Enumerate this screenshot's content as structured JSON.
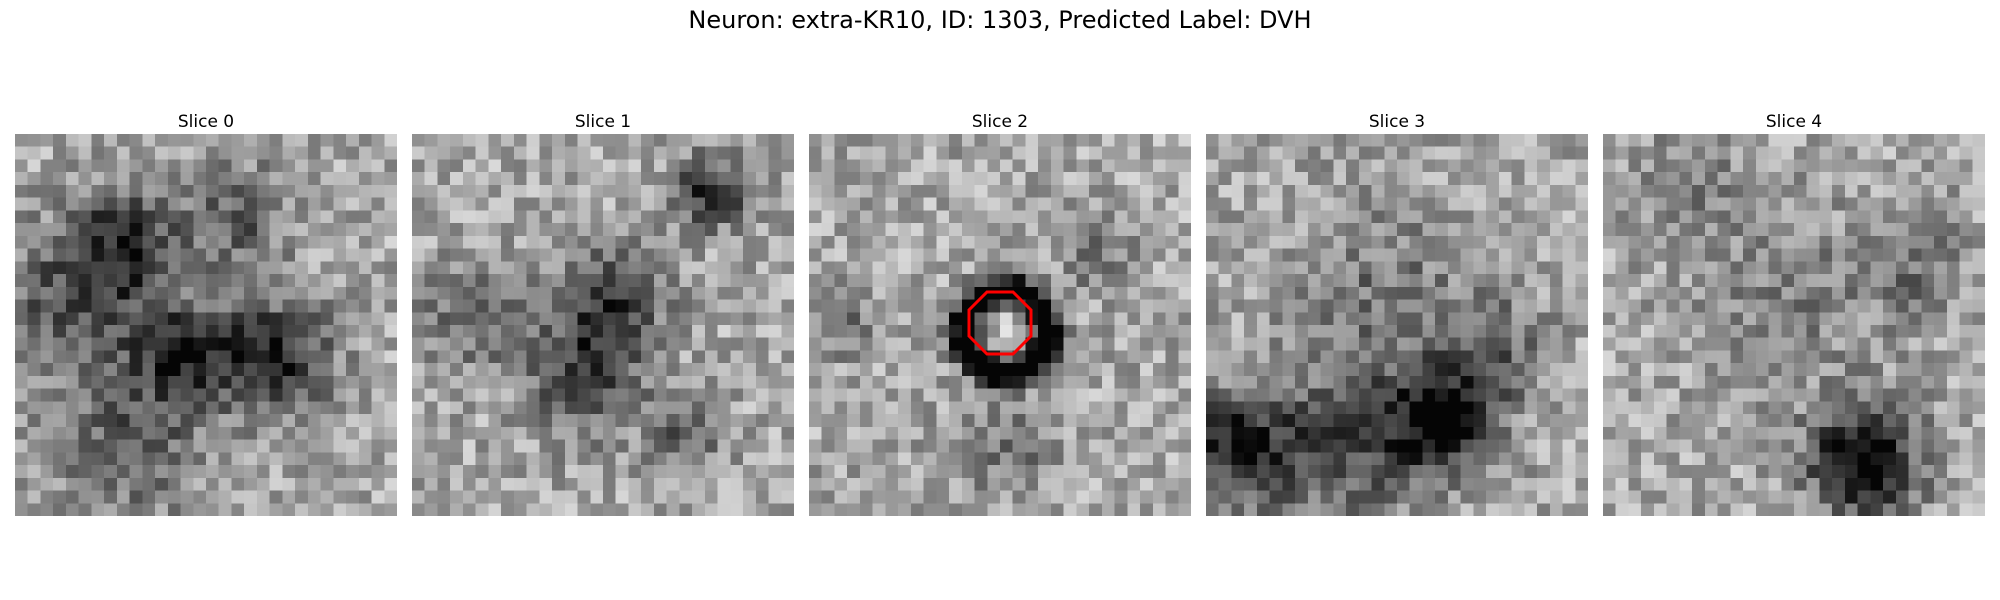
{
  "figure": {
    "title": "Neuron: extra-KR10, ID: 1303, Predicted Label: DVH"
  },
  "slices": [
    {
      "label": "Slice 0",
      "seed": 11,
      "spots": [
        [
          8,
          8,
          3,
          0.45
        ],
        [
          20,
          17,
          3,
          0.55
        ],
        [
          4,
          13,
          4,
          0.35
        ],
        [
          13,
          17,
          3,
          0.5
        ],
        [
          17,
          6,
          3,
          0.3
        ],
        [
          8,
          24,
          4,
          0.3
        ]
      ]
    },
    {
      "label": "Slice 1",
      "seed": 23,
      "spots": [
        [
          15,
          13,
          3,
          0.45
        ],
        [
          23,
          4,
          2,
          0.5
        ],
        [
          13,
          19,
          3,
          0.4
        ],
        [
          4,
          14,
          3,
          0.25
        ],
        [
          21,
          23,
          2,
          0.3
        ]
      ]
    },
    {
      "label": "Slice 2",
      "seed": 37,
      "ring": [
        15,
        15,
        3.2,
        0.85
      ],
      "spots": [
        [
          15,
          15,
          1.2,
          -0.15
        ],
        [
          2,
          14,
          2,
          0.25
        ],
        [
          22,
          9,
          2,
          0.2
        ],
        [
          15,
          24,
          3,
          0.2
        ]
      ]
    },
    {
      "label": "Slice 3",
      "seed": 49,
      "spots": [
        [
          13,
          12,
          5,
          0.2
        ],
        [
          2,
          24,
          3,
          0.55
        ],
        [
          10,
          24,
          4,
          0.35
        ],
        [
          18,
          22,
          3,
          0.7
        ],
        [
          22,
          16,
          3,
          0.25
        ]
      ]
    },
    {
      "label": "Slice 4",
      "seed": 61,
      "spots": [
        [
          20,
          25,
          3,
          0.7
        ],
        [
          14,
          12,
          5,
          0.15
        ],
        [
          6,
          4,
          3,
          0.2
        ],
        [
          24,
          10,
          3,
          0.2
        ]
      ]
    }
  ],
  "roi": {
    "slice_index": 2,
    "color": "#ff0000"
  }
}
